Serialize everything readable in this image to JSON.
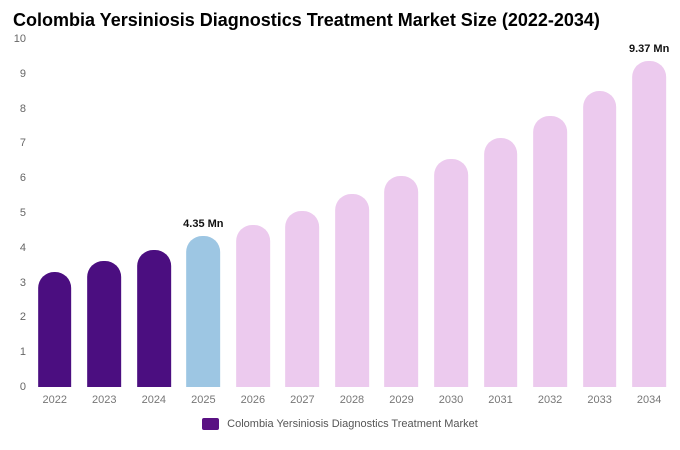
{
  "title": "Colombia Yersiniosis Diagnostics Treatment Market Size (2022-2034)",
  "legend": {
    "label": "Colombia Yersiniosis Diagnostics Treatment Market",
    "swatch_color": "#5a1183"
  },
  "colors": {
    "historical": "#4b0e80",
    "highlight": "#9dc6e3",
    "forecast": "#eccaee"
  },
  "chart_data": {
    "type": "bar",
    "title": "Colombia Yersiniosis Diagnostics Treatment Market Size (2022-2034)",
    "xlabel": "",
    "ylabel": "",
    "unit": "Mn",
    "ylim": [
      0,
      10
    ],
    "yticks": [
      0,
      1,
      2,
      3,
      4,
      5,
      6,
      7,
      8,
      9,
      10
    ],
    "grid": false,
    "legend_position": "bottom",
    "categories": [
      "2022",
      "2023",
      "2024",
      "2025",
      "2026",
      "2027",
      "2028",
      "2029",
      "2030",
      "2031",
      "2032",
      "2033",
      "2034"
    ],
    "values": [
      3.3,
      3.62,
      3.95,
      4.35,
      4.65,
      5.05,
      5.55,
      6.05,
      6.55,
      7.15,
      7.8,
      8.5,
      9.37
    ],
    "bar_roles": [
      "historical",
      "historical",
      "historical",
      "highlight",
      "forecast",
      "forecast",
      "forecast",
      "forecast",
      "forecast",
      "forecast",
      "forecast",
      "forecast",
      "forecast"
    ],
    "data_labels": [
      {
        "category": "2025",
        "text": "4.35 Mn"
      },
      {
        "category": "2034",
        "text": "9.37 Mn"
      }
    ]
  }
}
